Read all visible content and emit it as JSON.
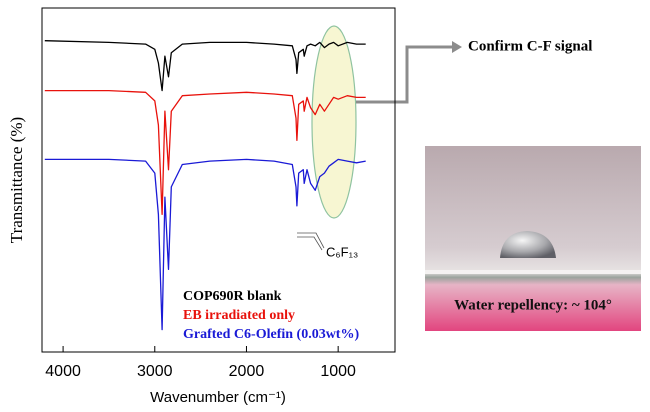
{
  "chart_data": {
    "type": "line",
    "y_label": "Transmittance (%)",
    "x_label": "Wavenumber (cm⁻¹)",
    "xlim": [
      4230,
      380
    ],
    "ylim": [
      0,
      100
    ],
    "xticks": [
      4000,
      3000,
      2000,
      1000
    ],
    "grid": false,
    "legend": "lower right",
    "x": [
      4200,
      3500,
      3100,
      3000,
      2960,
      2920,
      2890,
      2850,
      2820,
      2700,
      2400,
      2000,
      1700,
      1500,
      1460,
      1450,
      1430,
      1380,
      1370,
      1340,
      1300,
      1250,
      1200,
      1150,
      1100,
      1050,
      1000,
      900,
      800,
      700
    ],
    "series": [
      {
        "name": "COP690R blank",
        "color": "#000000",
        "values": [
          90.5,
          90,
          89.5,
          88,
          84,
          76,
          86,
          80,
          87,
          89.5,
          90,
          90,
          89.5,
          89,
          85,
          81,
          87,
          88,
          86,
          89,
          89.5,
          89,
          90,
          88.5,
          89.5,
          90,
          89,
          90,
          89.5,
          89.5
        ]
      },
      {
        "name": "EB irradiated only",
        "color": "#e8120c",
        "values": [
          76,
          76,
          75.5,
          73,
          66,
          40,
          70,
          53,
          70,
          74.5,
          75,
          75.5,
          75,
          74.5,
          68,
          61.5,
          72,
          73,
          70,
          74,
          71,
          69,
          72,
          70,
          72,
          74,
          73.5,
          74.5,
          74,
          74
        ]
      },
      {
        "name": "Grafted C6-Olefin (0.03wt%)",
        "color": "#1a1ad6",
        "values": [
          56,
          56,
          55.5,
          52,
          40,
          6.5,
          45,
          24,
          48,
          54.5,
          55.5,
          56,
          55.5,
          54.5,
          48,
          42.5,
          52,
          53,
          49,
          53,
          49,
          47,
          51,
          52,
          54,
          55,
          56,
          55.5,
          55,
          55.5
        ]
      }
    ],
    "annotations": [
      "Confirm C-F signal",
      "C₆F₁₃"
    ]
  },
  "photo": {
    "caption": "Water repellency: ~ 104°"
  }
}
